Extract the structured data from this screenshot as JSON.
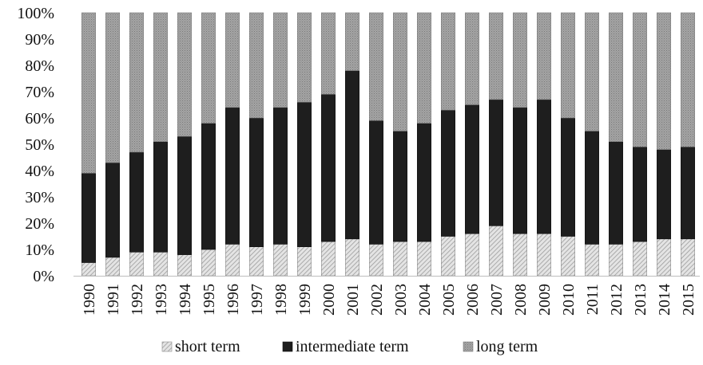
{
  "chart_data": {
    "type": "bar",
    "stacked": true,
    "percent": true,
    "categories": [
      "1990",
      "1991",
      "1992",
      "1993",
      "1994",
      "1995",
      "1996",
      "1997",
      "1998",
      "1999",
      "2000",
      "2001",
      "2002",
      "2003",
      "2004",
      "2005",
      "2006",
      "2007",
      "2008",
      "2009",
      "2010",
      "2011",
      "2012",
      "2013",
      "2014",
      "2015"
    ],
    "series": [
      {
        "name": "short term",
        "color": "#c8c8c8",
        "values": [
          5,
          7,
          9,
          9,
          8,
          10,
          12,
          11,
          12,
          11,
          13,
          14,
          12,
          13,
          13,
          15,
          16,
          19,
          16,
          16,
          15,
          12,
          12,
          13,
          14,
          14
        ]
      },
      {
        "name": "intermediate term",
        "color": "#1e1e1e",
        "values": [
          34,
          36,
          38,
          42,
          45,
          48,
          52,
          49,
          52,
          55,
          56,
          64,
          47,
          42,
          45,
          48,
          49,
          48,
          48,
          51,
          45,
          43,
          39,
          36,
          34,
          35
        ]
      },
      {
        "name": "long term",
        "color": "#9a9a9a",
        "values": [
          61,
          57,
          53,
          49,
          47,
          42,
          36,
          40,
          36,
          34,
          31,
          22,
          41,
          45,
          42,
          37,
          35,
          33,
          36,
          33,
          40,
          45,
          49,
          51,
          52,
          51
        ]
      }
    ],
    "yticks": [
      "0%",
      "10%",
      "20%",
      "30%",
      "40%",
      "50%",
      "60%",
      "70%",
      "80%",
      "90%",
      "100%"
    ],
    "ylim": [
      0,
      100
    ],
    "xlabel": "",
    "ylabel": "",
    "title": "",
    "legend": "bottom",
    "grid": false
  }
}
